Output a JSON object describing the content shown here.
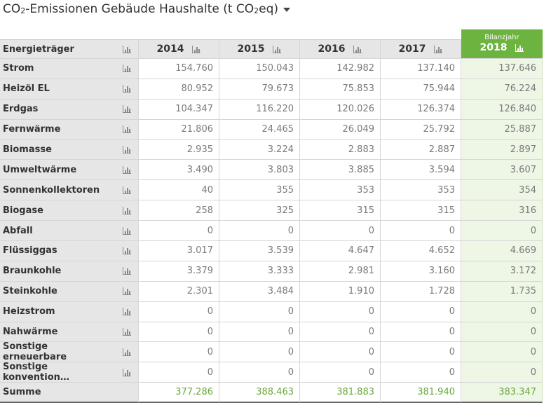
{
  "title": {
    "prefix": "CO",
    "sub1": "2",
    "middle": "-Emissionen Gebäude Haushalte (t CO",
    "sub2": "2",
    "suffix": "eq)"
  },
  "header": {
    "first_col": "Energieträger",
    "years": [
      "2014",
      "2015",
      "2016",
      "2017"
    ],
    "last_small": "Bilanzjahr",
    "last_year": "2018"
  },
  "rows": [
    {
      "name": "Strom",
      "values": [
        "154.760",
        "150.043",
        "142.982",
        "137.140",
        "137.646"
      ]
    },
    {
      "name": "Heizöl EL",
      "values": [
        "80.952",
        "79.673",
        "75.853",
        "75.944",
        "76.224"
      ]
    },
    {
      "name": "Erdgas",
      "values": [
        "104.347",
        "116.220",
        "120.026",
        "126.374",
        "126.840"
      ]
    },
    {
      "name": "Fernwärme",
      "values": [
        "21.806",
        "24.465",
        "26.049",
        "25.792",
        "25.887"
      ]
    },
    {
      "name": "Biomasse",
      "values": [
        "2.935",
        "3.224",
        "2.883",
        "2.887",
        "2.897"
      ]
    },
    {
      "name": "Umweltwärme",
      "values": [
        "3.490",
        "3.803",
        "3.885",
        "3.594",
        "3.607"
      ]
    },
    {
      "name": "Sonnenkollektoren",
      "values": [
        "40",
        "355",
        "353",
        "353",
        "354"
      ]
    },
    {
      "name": "Biogase",
      "values": [
        "258",
        "325",
        "315",
        "315",
        "316"
      ]
    },
    {
      "name": "Abfall",
      "values": [
        "0",
        "0",
        "0",
        "0",
        "0"
      ]
    },
    {
      "name": "Flüssiggas",
      "values": [
        "3.017",
        "3.539",
        "4.647",
        "4.652",
        "4.669"
      ]
    },
    {
      "name": "Braunkohle",
      "values": [
        "3.379",
        "3.333",
        "2.981",
        "3.160",
        "3.172"
      ]
    },
    {
      "name": "Steinkohle",
      "values": [
        "2.301",
        "3.484",
        "1.910",
        "1.728",
        "1.735"
      ]
    },
    {
      "name": "Heizstrom",
      "values": [
        "0",
        "0",
        "0",
        "0",
        "0"
      ]
    },
    {
      "name": "Nahwärme",
      "values": [
        "0",
        "0",
        "0",
        "0",
        "0"
      ]
    },
    {
      "name": "Sonstige erneuerbare",
      "values": [
        "0",
        "0",
        "0",
        "0",
        "0"
      ]
    },
    {
      "name": "Sonstige konvention…",
      "values": [
        "0",
        "0",
        "0",
        "0",
        "0"
      ]
    }
  ],
  "sum": {
    "name": "Summe",
    "values": [
      "377.286",
      "388.463",
      "381.883",
      "381.940",
      "383.347"
    ]
  },
  "icons": {
    "chart": "bar-chart-icon",
    "dropdown": "caret-down-icon"
  },
  "colors": {
    "accent": "#6db33f",
    "sum_text": "#6aa83a",
    "label_bg": "#e6e6e6",
    "highlight_bg": "#eef6e6"
  }
}
